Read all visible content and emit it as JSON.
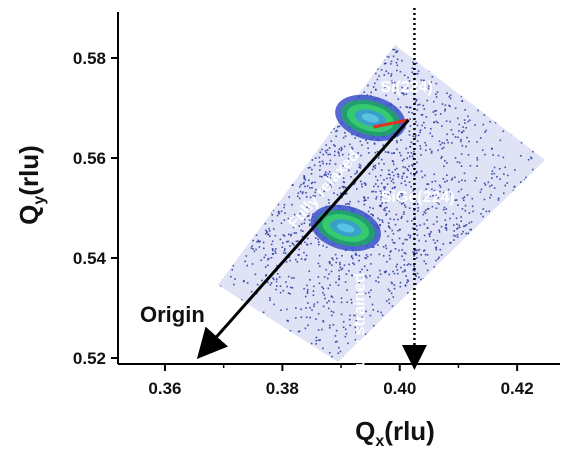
{
  "chart_data": {
    "type": "rsm",
    "x_label": {
      "main": "Q",
      "sub": "x",
      "rest": "(rlu)"
    },
    "y_label": {
      "main": "Q",
      "sub": "y",
      "rest": "(rlu)"
    },
    "xlim": [
      0.352,
      0.4273
    ],
    "ylim": [
      0.5188,
      0.5892
    ],
    "xticks": [
      {
        "value": 0.36,
        "label": "0.36"
      },
      {
        "value": 0.38,
        "label": "0.38"
      },
      {
        "value": 0.4,
        "label": "0.40"
      },
      {
        "value": 0.42,
        "label": "0.42"
      }
    ],
    "yticks": [
      {
        "value": 0.52,
        "label": "0.52"
      },
      {
        "value": 0.54,
        "label": "0.54"
      },
      {
        "value": 0.56,
        "label": "0.56"
      },
      {
        "value": 0.58,
        "label": "0.58"
      }
    ],
    "peaks": {
      "labels": [
        "Si(224)",
        "SiGe(224)"
      ],
      "x": [
        0.395,
        0.3908
      ],
      "values": [
        0.568,
        0.546
      ]
    },
    "relaxed_line": {
      "label": "Fully relaxed",
      "x": [
        0.4015,
        0.3668
      ],
      "values": [
        0.5676,
        0.5216
      ]
    },
    "strained_line": {
      "label": "Fully strained",
      "x": 0.4025
    },
    "origin_label": "Origin",
    "map_color": "#1a2a9a"
  }
}
